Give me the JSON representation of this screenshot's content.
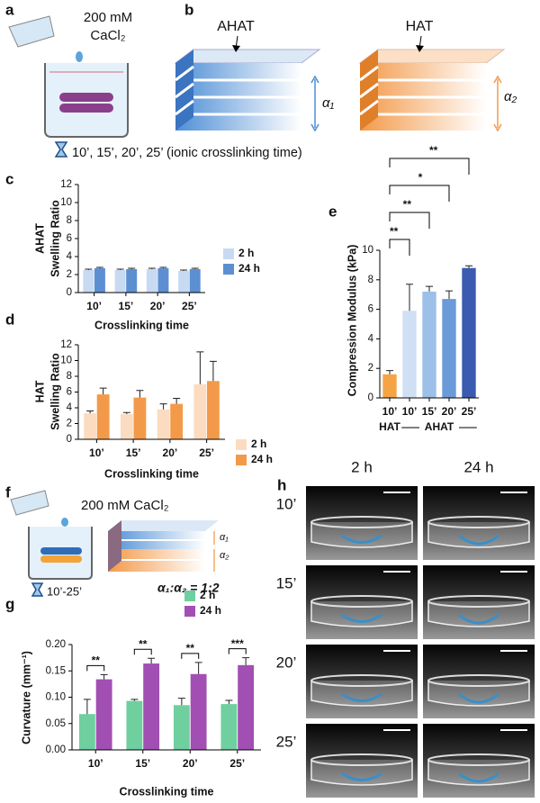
{
  "panel_a": {
    "label": "a",
    "concentration": "200 mM",
    "salt": "CaCl₂",
    "times": "10’, 15’, 20’, 25’ (ionic crosslinking time)"
  },
  "panel_b": {
    "label": "b",
    "blocks": [
      "AHAT",
      "HAT"
    ],
    "heights": [
      "α₁",
      "α₂"
    ]
  },
  "panel_f": {
    "label": "f",
    "salt": "200 mM CaCl₂",
    "time": "10’-25’",
    "heights": [
      "α₁",
      "α₂"
    ],
    "ratio": "α₁:α₂ = 1:2"
  },
  "panel_h": {
    "label": "h",
    "columns": [
      "2 h",
      "24 h"
    ],
    "rows": [
      "10’",
      "15’",
      "20’",
      "25’"
    ]
  },
  "chart_data": [
    {
      "type": "bar",
      "panel_label": "c",
      "ylabel": [
        "AHAT",
        "Swelling Ratio"
      ],
      "xlabel": "Crosslinking time",
      "categories": [
        "10’",
        "15’",
        "20’",
        "25’"
      ],
      "ylim": [
        0,
        12
      ],
      "yticks": [
        0,
        2,
        4,
        6,
        8,
        10,
        12
      ],
      "series": [
        {
          "name": "2 h",
          "color": "#c8daf2",
          "values": [
            2.5,
            2.5,
            2.6,
            2.4
          ],
          "errors": [
            0.1,
            0.1,
            0.1,
            0.1
          ]
        },
        {
          "name": "24 h",
          "color": "#5b8fd2",
          "values": [
            2.7,
            2.6,
            2.7,
            2.6
          ],
          "errors": [
            0.1,
            0.1,
            0.1,
            0.1
          ]
        }
      ]
    },
    {
      "type": "bar",
      "panel_label": "d",
      "ylabel": [
        "HAT",
        "Swelling Ratio"
      ],
      "xlabel": "Crosslinking time",
      "categories": [
        "10’",
        "15’",
        "20’",
        "25’"
      ],
      "ylim": [
        0,
        12
      ],
      "yticks": [
        0,
        2,
        4,
        6,
        8,
        10,
        12
      ],
      "series": [
        {
          "name": "2 h",
          "color": "#fbdcc0",
          "values": [
            3.3,
            3.2,
            3.8,
            7.0
          ],
          "errors": [
            0.3,
            0.2,
            0.7,
            4.1
          ]
        },
        {
          "name": "24 h",
          "color": "#f39a4a",
          "values": [
            5.7,
            5.3,
            4.5,
            7.4
          ],
          "errors": [
            0.8,
            0.9,
            0.7,
            2.5
          ]
        }
      ]
    },
    {
      "type": "bar",
      "panel_label": "e",
      "ylabel": [
        "Compression Modulus (kPa)"
      ],
      "categories": [
        "10’",
        "10’",
        "15’",
        "20’",
        "25’"
      ],
      "groups": [
        "HAT",
        "AHAT"
      ],
      "ylim": [
        0,
        10
      ],
      "yticks": [
        0,
        2,
        4,
        6,
        8,
        10
      ],
      "values": [
        1.6,
        5.9,
        7.2,
        6.7,
        8.8
      ],
      "errors": [
        0.25,
        1.8,
        0.35,
        0.55,
        0.15
      ],
      "colors": [
        "#f5a445",
        "#cfe0f5",
        "#9dc0e8",
        "#6b9ad8",
        "#3a5bb0"
      ],
      "annotations": [
        "**",
        "**",
        "*",
        "**"
      ]
    },
    {
      "type": "bar",
      "panel_label": "g",
      "ylabel": [
        "Curvature (mm⁻¹)"
      ],
      "xlabel": "Crosslinking time",
      "categories": [
        "10’",
        "15’",
        "20’",
        "25’"
      ],
      "ylim": [
        0,
        0.2
      ],
      "yticks": [
        {
          "value": 0,
          "label": "0.00"
        },
        {
          "value": 0.05,
          "label": "0.05"
        },
        {
          "value": 0.1,
          "label": "0.10"
        },
        {
          "value": 0.15,
          "label": "0.15"
        },
        {
          "value": 0.2,
          "label": "0.20"
        }
      ],
      "series": [
        {
          "name": "2 h",
          "color": "#6fcf9f",
          "values": [
            0.068,
            0.093,
            0.085,
            0.087
          ],
          "errors": [
            0.028,
            0.003,
            0.013,
            0.007
          ]
        },
        {
          "name": "24 h",
          "color": "#a24fb3",
          "values": [
            0.134,
            0.164,
            0.144,
            0.161
          ],
          "errors": [
            0.009,
            0.01,
            0.022,
            0.014
          ]
        }
      ],
      "annotations": [
        "**",
        "**",
        "**",
        "***"
      ]
    }
  ]
}
